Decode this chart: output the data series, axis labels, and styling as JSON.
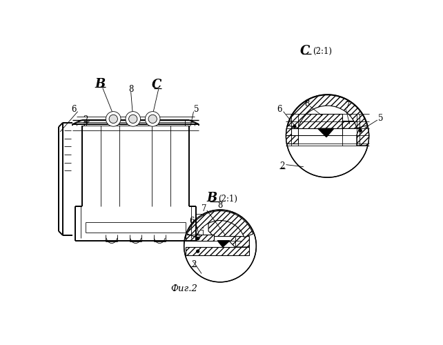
{
  "bg_color": "#ffffff",
  "line_color": "#000000",
  "fig_width": 6.42,
  "fig_height": 5.0,
  "dpi": 100,
  "hatch_angle": "////",
  "labels": {
    "B": "B",
    "C": "C",
    "fig": "Фиг.2",
    "B_detail": "(2:1)",
    "C_detail": "(2:1)"
  }
}
